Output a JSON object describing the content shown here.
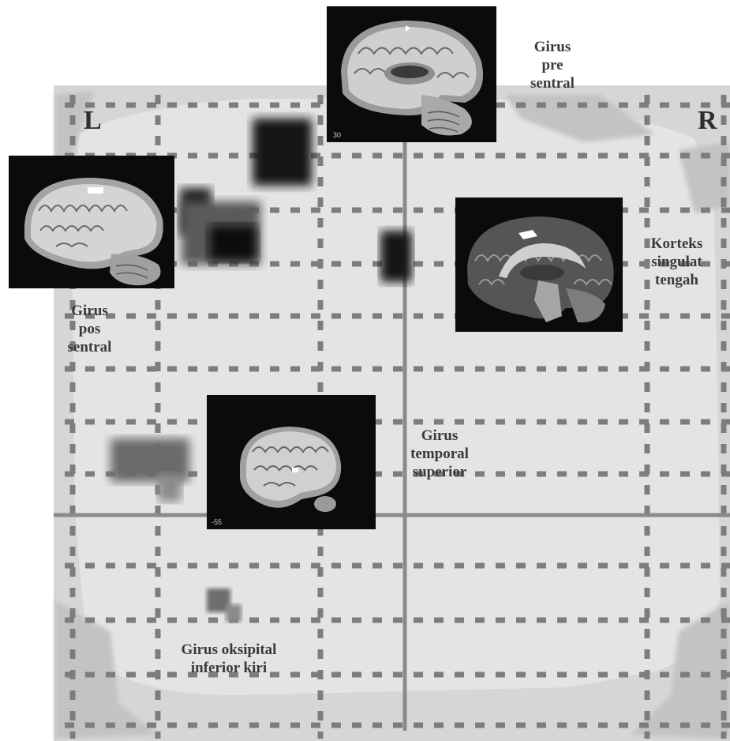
{
  "figure": {
    "side_left": "L",
    "side_right": "R",
    "colors": {
      "map_background": "#e3e3e3",
      "grid_dots": "#7a7a7a",
      "activation": "#111111",
      "panel_background": "#0b0b0b",
      "label_text": "#3a3a3a"
    }
  },
  "regions": [
    {
      "id": "precentral",
      "lines": [
        "Girus",
        "pre",
        "sentral"
      ],
      "slice": "30"
    },
    {
      "id": "postcentral",
      "lines": [
        "Girus",
        "pos",
        "sentral"
      ],
      "slice": ""
    },
    {
      "id": "cingulate",
      "lines": [
        "Korteks",
        "singulat",
        "tengah"
      ],
      "slice": ""
    },
    {
      "id": "temporal",
      "lines": [
        "Girus",
        "temporal",
        "superior"
      ],
      "slice": "-55"
    },
    {
      "id": "occipital",
      "lines": [
        "Girus oksipital",
        "inferior kiri"
      ],
      "slice": ""
    }
  ]
}
